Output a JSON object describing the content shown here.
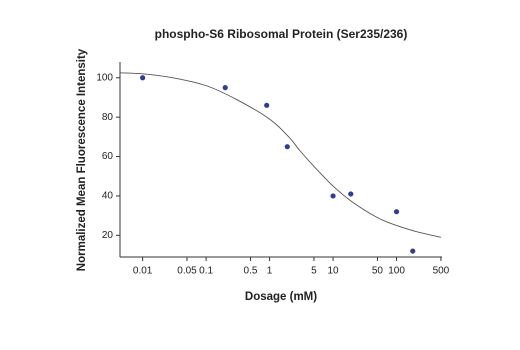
{
  "chart_data": {
    "type": "scatter",
    "title": "phospho-S6 Ribosomal Protein (Ser235/236)",
    "x_label": "Dosage (mM)",
    "y_label": "Normalized Mean Fluorescence Intensity",
    "x_scale": "log",
    "xlim": [
      0.0044,
      520
    ],
    "ylim": [
      9,
      108
    ],
    "xticks": [
      0.01,
      0.05,
      0.1,
      0.5,
      1,
      5,
      10,
      50,
      100,
      500
    ],
    "yticks": [
      20,
      40,
      60,
      80,
      100
    ],
    "grid": false,
    "series": [
      {
        "kind": "points",
        "color": "#2e3f8f",
        "x": [
          0.01,
          0.2,
          0.9,
          1.9,
          10,
          19,
          100,
          180
        ],
        "values": [
          100,
          95,
          86,
          65,
          40,
          41,
          32,
          12
        ]
      },
      {
        "kind": "line",
        "color": "#555555",
        "x": [
          0.0044,
          0.01,
          0.03,
          0.1,
          0.3,
          1,
          2,
          3,
          5,
          10,
          20,
          50,
          100,
          200,
          500
        ],
        "values": [
          102.5,
          102,
          100,
          96,
          89,
          79,
          70,
          63,
          55,
          45,
          37,
          29,
          25,
          22,
          19
        ]
      }
    ]
  }
}
